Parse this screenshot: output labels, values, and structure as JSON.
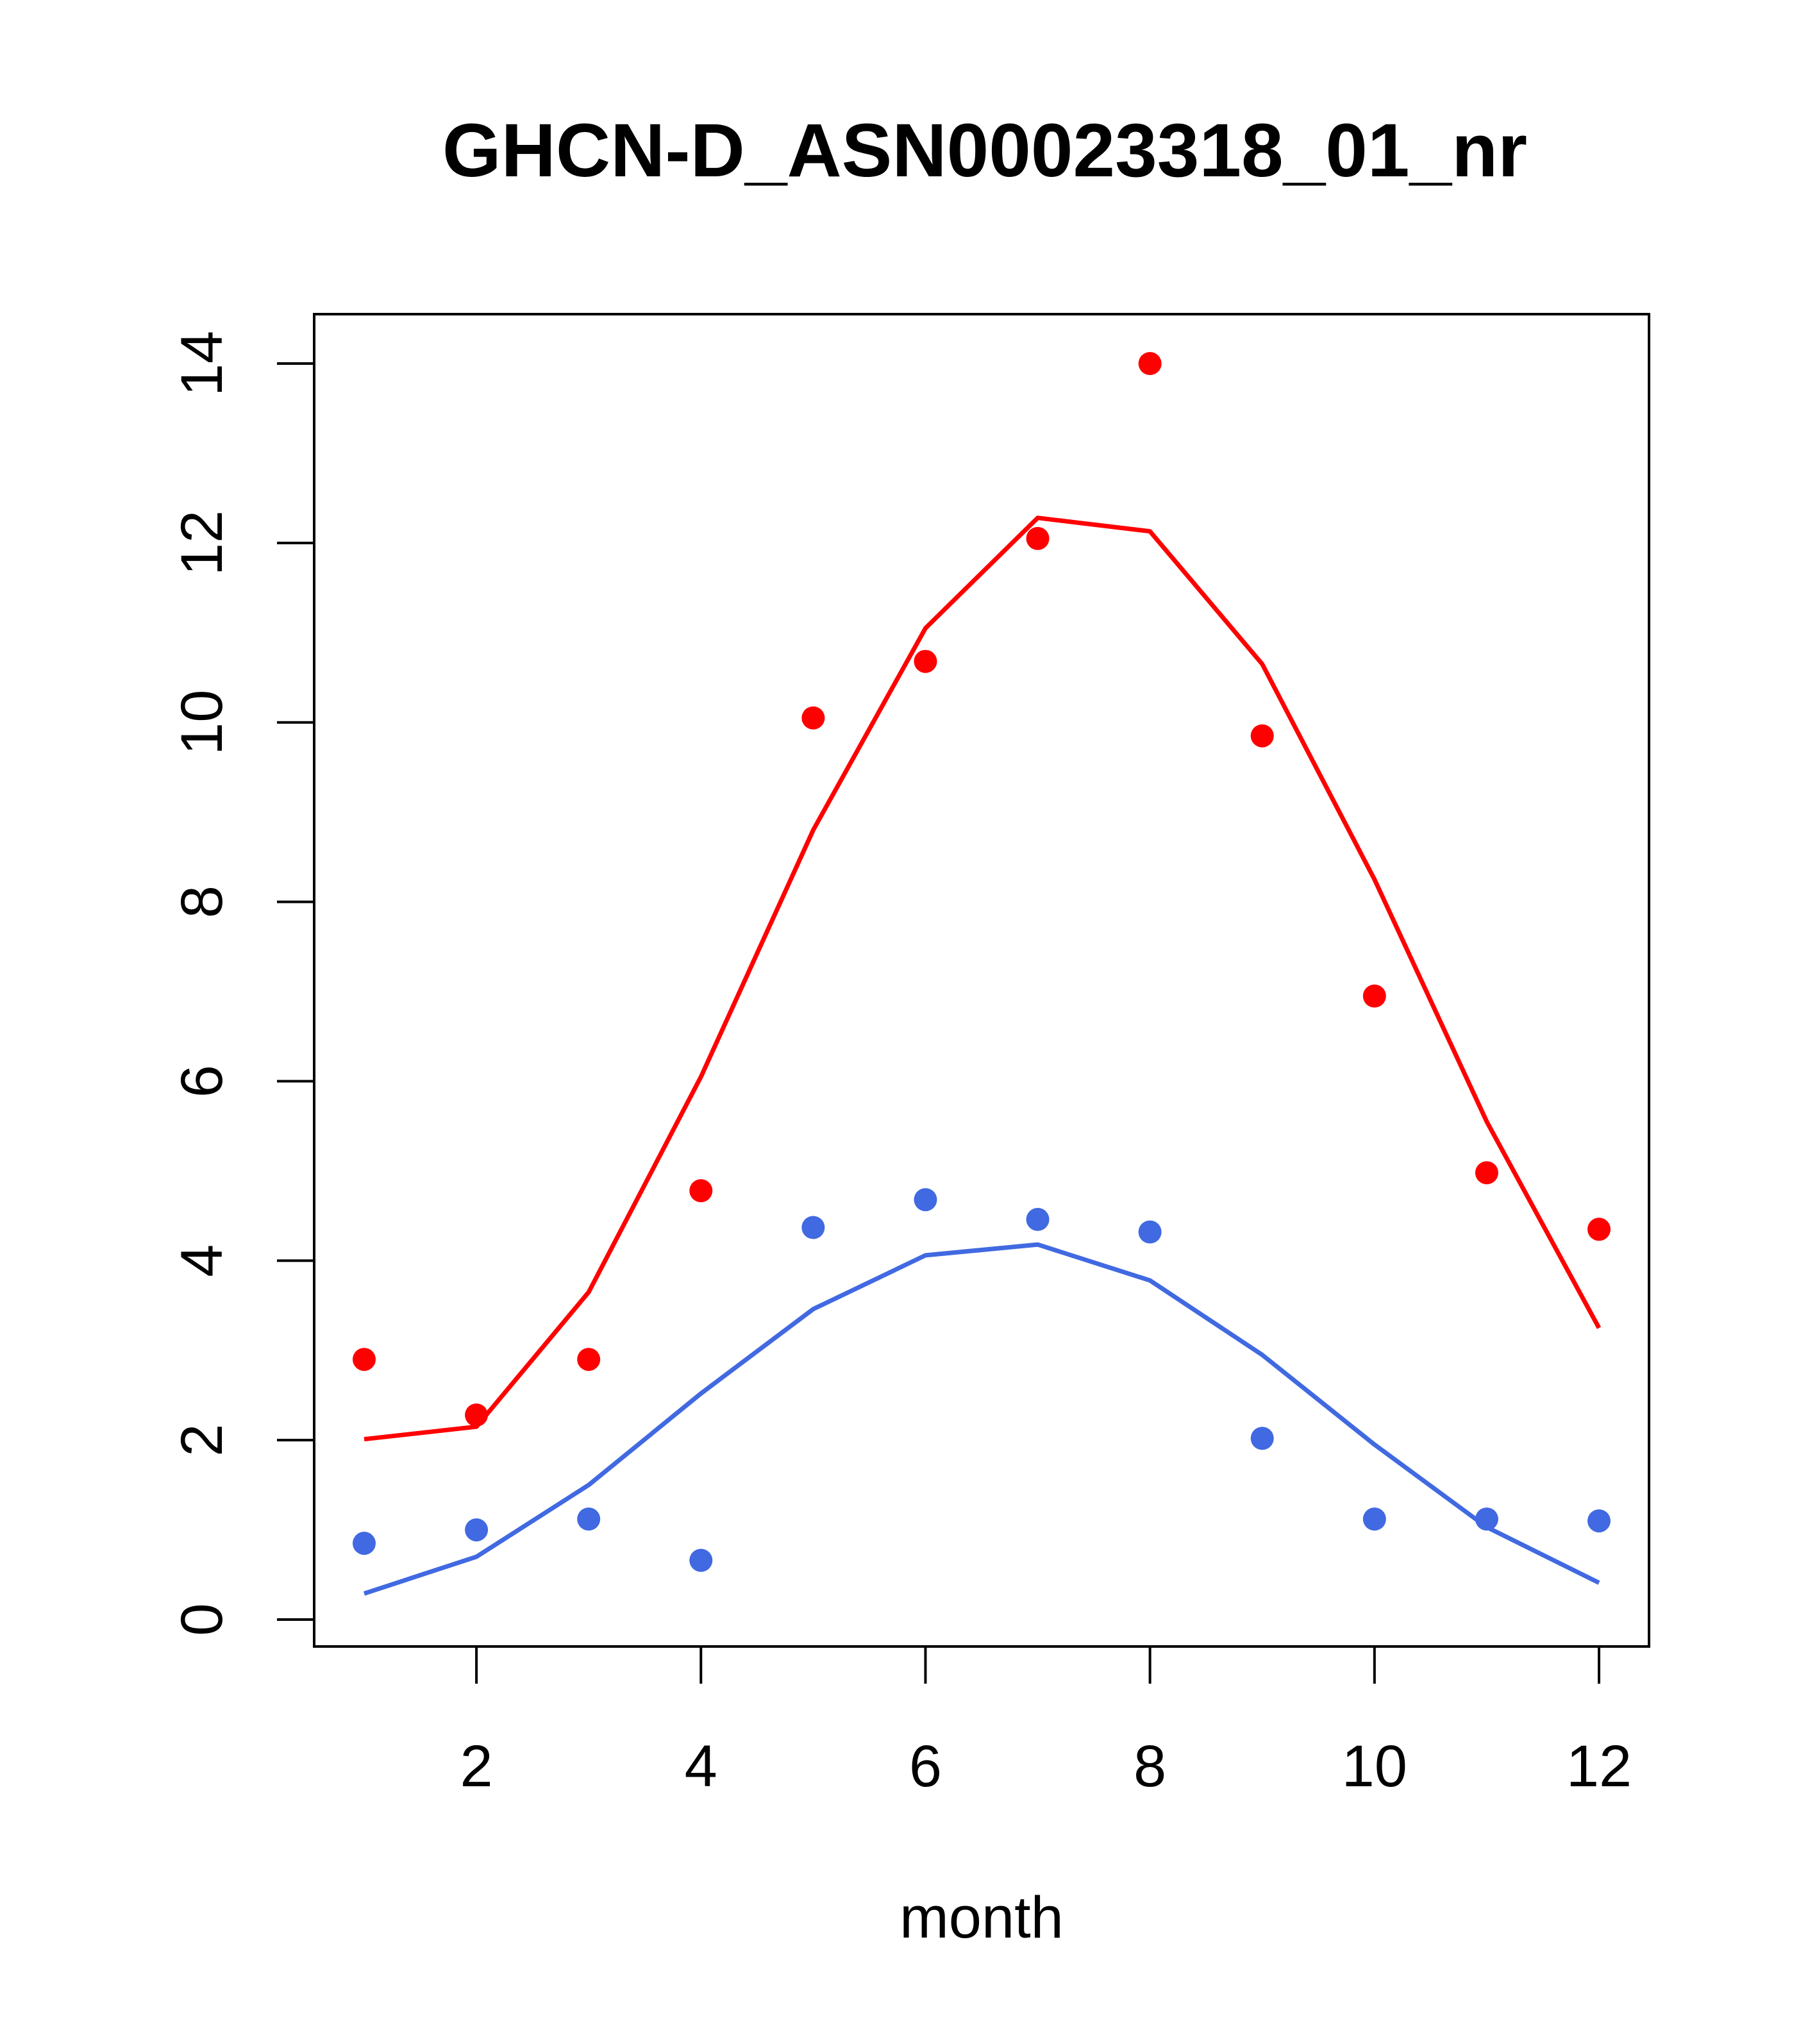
{
  "chart_data": {
    "type": "scatter",
    "title": "GHCN-D_ASN00023318_01_nr",
    "xlabel": "month",
    "ylabel": "",
    "xlim": [
      1,
      12
    ],
    "ylim": [
      0,
      14
    ],
    "xticks": [
      2,
      4,
      6,
      8,
      10,
      12
    ],
    "yticks": [
      0,
      2,
      4,
      6,
      8,
      10,
      12,
      14
    ],
    "grid": false,
    "series": [
      {
        "kind": "points",
        "color": "#ff0000",
        "x": [
          1,
          2,
          3,
          4,
          5,
          6,
          7,
          8,
          9,
          10,
          11,
          12
        ],
        "y": [
          2.9,
          2.28,
          2.9,
          4.78,
          10.05,
          10.68,
          12.05,
          14.0,
          9.85,
          6.95,
          4.98,
          4.35
        ]
      },
      {
        "kind": "line",
        "color": "#ff0000",
        "x": [
          1,
          2,
          3,
          4,
          5,
          6,
          7,
          8,
          9,
          10,
          11,
          12
        ],
        "y": [
          2.01,
          2.15,
          3.65,
          6.05,
          8.8,
          11.05,
          12.28,
          12.13,
          10.65,
          8.25,
          5.55,
          3.25
        ]
      },
      {
        "kind": "points",
        "color": "#4169e1",
        "x": [
          1,
          2,
          3,
          4,
          5,
          6,
          7,
          8,
          9,
          10,
          11,
          12
        ],
        "y": [
          0.85,
          1.0,
          1.12,
          0.66,
          4.37,
          4.68,
          4.46,
          4.32,
          2.02,
          1.12,
          1.12,
          1.1
        ]
      },
      {
        "kind": "line",
        "color": "#4169e1",
        "x": [
          1,
          2,
          3,
          4,
          5,
          6,
          7,
          8,
          9,
          10,
          11,
          12
        ],
        "y": [
          0.29,
          0.7,
          1.5,
          2.52,
          3.46,
          4.06,
          4.18,
          3.78,
          2.95,
          1.95,
          1.03,
          0.41
        ]
      }
    ]
  }
}
